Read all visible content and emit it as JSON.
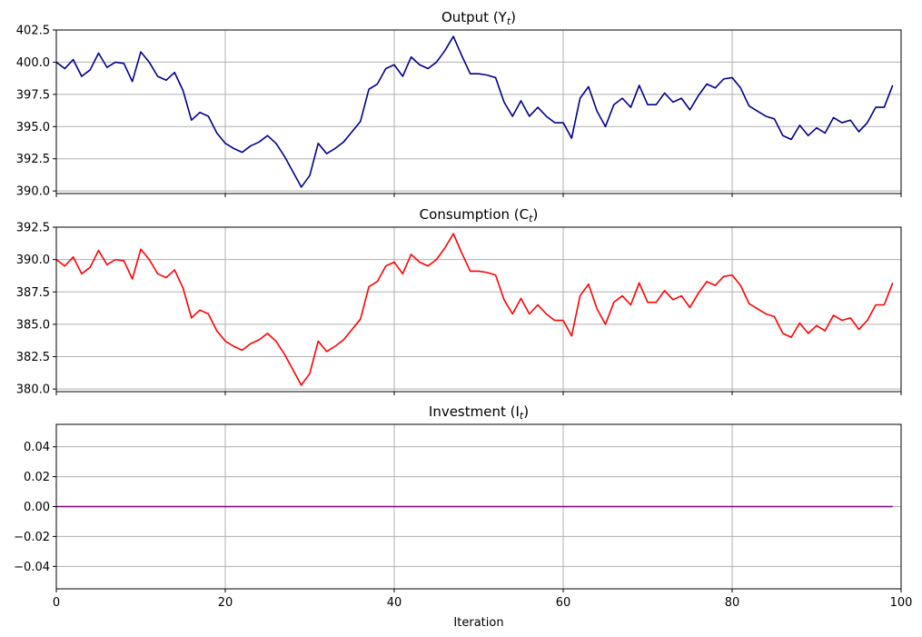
{
  "chart_data": [
    {
      "type": "line",
      "title": "Output (Y",
      "title_sub": "t",
      "title_end": ")",
      "xlabel": "",
      "xlim": [
        0,
        100
      ],
      "ylim": [
        389.8,
        402.5
      ],
      "x_ticks": [
        0,
        20,
        40,
        60,
        80,
        100
      ],
      "y_ticks": [
        390.0,
        392.5,
        395.0,
        397.5,
        400.0,
        402.5
      ],
      "grid": true,
      "series": [
        {
          "color": "#00008b",
          "values": [
            400.0,
            399.5,
            400.2,
            398.9,
            399.4,
            400.7,
            399.6,
            400.0,
            399.9,
            398.5,
            400.8,
            400.0,
            398.9,
            398.6,
            399.2,
            397.8,
            395.5,
            396.1,
            395.8,
            394.5,
            393.7,
            393.3,
            393.0,
            393.5,
            393.8,
            394.3,
            393.7,
            392.7,
            391.5,
            390.3,
            391.2,
            393.7,
            392.9,
            393.3,
            393.8,
            394.6,
            395.4,
            397.9,
            398.3,
            399.5,
            399.8,
            398.9,
            400.4,
            399.8,
            399.5,
            400.0,
            400.9,
            402.0,
            400.5,
            399.1,
            399.1,
            399.0,
            398.8,
            396.9,
            395.8,
            397.0,
            395.8,
            396.5,
            395.8,
            395.3,
            395.3,
            394.1,
            397.2,
            398.1,
            396.2,
            395.0,
            396.7,
            397.2,
            396.5,
            398.2,
            396.7,
            396.7,
            397.6,
            396.9,
            397.2,
            396.3,
            397.4,
            398.3,
            398.0,
            398.7,
            398.8,
            398.0,
            396.6,
            396.2,
            395.8,
            395.6,
            394.3,
            394.0,
            395.1,
            394.3,
            394.9,
            394.5,
            395.7,
            395.3,
            395.5,
            394.6,
            395.3,
            396.5,
            396.5,
            398.2
          ]
        }
      ]
    },
    {
      "type": "line",
      "title": "Consumption (C",
      "title_sub": "t",
      "title_end": ")",
      "xlabel": "",
      "xlim": [
        0,
        100
      ],
      "ylim": [
        379.8,
        392.5
      ],
      "x_ticks": [
        0,
        20,
        40,
        60,
        80,
        100
      ],
      "y_ticks": [
        380.0,
        382.5,
        385.0,
        387.5,
        390.0,
        392.5
      ],
      "grid": true,
      "series": [
        {
          "color": "#ff0000",
          "values": [
            390.0,
            389.5,
            390.2,
            388.9,
            389.4,
            390.7,
            389.6,
            390.0,
            389.9,
            388.5,
            390.8,
            390.0,
            388.9,
            388.6,
            389.2,
            387.8,
            385.5,
            386.1,
            385.8,
            384.5,
            383.7,
            383.3,
            383.0,
            383.5,
            383.8,
            384.3,
            383.7,
            382.7,
            381.5,
            380.3,
            381.2,
            383.7,
            382.9,
            383.3,
            383.8,
            384.6,
            385.4,
            387.9,
            388.3,
            389.5,
            389.8,
            388.9,
            390.4,
            389.8,
            389.5,
            390.0,
            390.9,
            392.0,
            390.5,
            389.1,
            389.1,
            389.0,
            388.8,
            386.9,
            385.8,
            387.0,
            385.8,
            386.5,
            385.8,
            385.3,
            385.3,
            384.1,
            387.2,
            388.1,
            386.2,
            385.0,
            386.7,
            387.2,
            386.5,
            388.2,
            386.7,
            386.7,
            387.6,
            386.9,
            387.2,
            386.3,
            387.4,
            388.3,
            388.0,
            388.7,
            388.8,
            388.0,
            386.6,
            386.2,
            385.8,
            385.6,
            384.3,
            384.0,
            385.1,
            384.3,
            384.9,
            384.5,
            385.7,
            385.3,
            385.5,
            384.6,
            385.3,
            386.5,
            386.5,
            388.2
          ]
        }
      ]
    },
    {
      "type": "line",
      "title": "Investment (I",
      "title_sub": "t",
      "title_end": ")",
      "xlabel": "Iteration",
      "xlim": [
        0,
        100
      ],
      "ylim": [
        -0.055,
        0.055
      ],
      "x_ticks": [
        0,
        20,
        40,
        60,
        80,
        100
      ],
      "y_ticks": [
        -0.04,
        -0.02,
        0.0,
        0.02,
        0.04
      ],
      "grid": true,
      "series": [
        {
          "color": "#800080",
          "values": "zeros",
          "n": 100
        }
      ]
    }
  ],
  "tick_labels": {
    "x": [
      "0",
      "20",
      "40",
      "60",
      "80",
      "100"
    ],
    "y0": [
      "390.0",
      "392.5",
      "395.0",
      "397.5",
      "400.0",
      "402.5"
    ],
    "y1": [
      "380.0",
      "382.5",
      "385.0",
      "387.5",
      "390.0",
      "392.5"
    ],
    "y2": [
      "−0.04",
      "−0.02",
      "0.00",
      "0.02",
      "0.04"
    ]
  }
}
